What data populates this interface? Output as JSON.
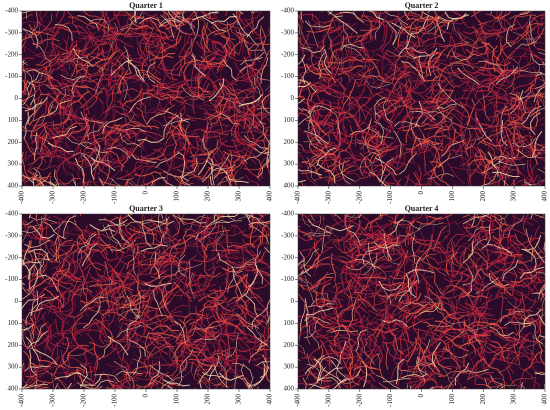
{
  "chart_data": [
    {
      "type": "heatmap",
      "title": "Quarter 1",
      "xlim": [
        -400,
        400
      ],
      "ylim": [
        400,
        -400
      ],
      "xticks": [
        -400,
        -300,
        -200,
        -100,
        0,
        100,
        200,
        300,
        400
      ],
      "yticks": [
        -400,
        -300,
        -200,
        -100,
        0,
        100,
        200,
        300,
        400
      ],
      "colors": [
        "#2a0c2a",
        "#b8243f",
        "#ee5a45",
        "#fbd5a8"
      ]
    },
    {
      "type": "heatmap",
      "title": "Quarter 2",
      "xlim": [
        -400,
        400
      ],
      "ylim": [
        400,
        -400
      ],
      "xticks": [
        -400,
        -300,
        -200,
        -100,
        0,
        100,
        200,
        300,
        400
      ],
      "yticks": [
        -400,
        -300,
        -200,
        -100,
        0,
        100,
        200,
        300,
        400
      ],
      "colors": [
        "#2a0c2a",
        "#b8243f",
        "#ee5a45",
        "#fbd5a8"
      ]
    },
    {
      "type": "heatmap",
      "title": "Quarter 3",
      "xlim": [
        -400,
        400
      ],
      "ylim": [
        400,
        -400
      ],
      "xticks": [
        -400,
        -300,
        -200,
        -100,
        0,
        100,
        200,
        300,
        400
      ],
      "yticks": [
        -400,
        -300,
        -200,
        -100,
        0,
        100,
        200,
        300,
        400
      ],
      "colors": [
        "#2a0c2a",
        "#b8243f",
        "#ee5a45",
        "#fbd5a8"
      ]
    },
    {
      "type": "heatmap",
      "title": "Quarter 4",
      "xlim": [
        -400,
        400
      ],
      "ylim": [
        400,
        -400
      ],
      "xticks": [
        -400,
        -300,
        -200,
        -100,
        0,
        100,
        200,
        300,
        400
      ],
      "yticks": [
        -400,
        -300,
        -200,
        -100,
        0,
        100,
        200,
        300,
        400
      ],
      "colors": [
        "#2a0c2a",
        "#b8243f",
        "#ee5a45",
        "#fbd5a8"
      ]
    }
  ]
}
